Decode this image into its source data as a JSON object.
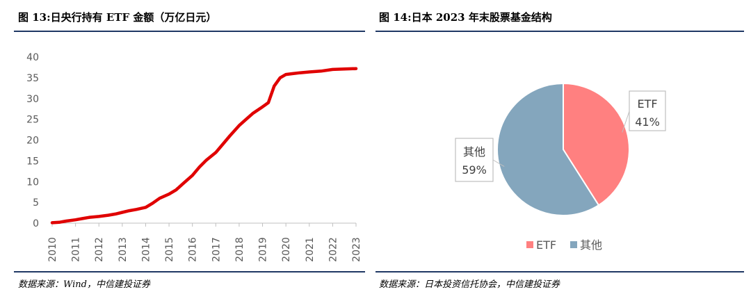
{
  "left_figure": {
    "title": "图 13:日央行持有 ETF 金额（万亿日元）",
    "source": "数据来源：Wind，中信建投证券"
  },
  "right_figure": {
    "title": "图 14:日本 2023 年末股票基金结构",
    "source": "数据来源：日本投资信托协会，中信建投证券"
  },
  "colors": {
    "line": "#e00000",
    "etf": "#ff8080",
    "other": "#84a6bd",
    "rule": "#1f3864"
  },
  "chart_data": [
    {
      "type": "line",
      "title": "日央行持有 ETF 金额（万亿日元）",
      "xlabel": "",
      "ylabel": "",
      "x_ticks": [
        "2010",
        "2011",
        "2012",
        "2013",
        "2014",
        "2015",
        "2016",
        "2017",
        "2018",
        "2019",
        "2020",
        "2021",
        "2022",
        "2023"
      ],
      "xlim": [
        2010,
        2023
      ],
      "ylim": [
        0,
        40
      ],
      "y_ticks": [
        0,
        5,
        10,
        15,
        20,
        25,
        30,
        35,
        40
      ],
      "grid": false,
      "series": [
        {
          "name": "日央行持有ETF金额",
          "x": [
            2010.0,
            2010.3,
            2010.6,
            2011.0,
            2011.3,
            2011.6,
            2012.0,
            2012.4,
            2012.7,
            2013.0,
            2013.3,
            2013.6,
            2014.0,
            2014.3,
            2014.6,
            2015.0,
            2015.3,
            2015.6,
            2016.0,
            2016.3,
            2016.6,
            2017.0,
            2017.3,
            2017.6,
            2018.0,
            2018.3,
            2018.6,
            2019.0,
            2019.25,
            2019.5,
            2019.75,
            2020.0,
            2020.3,
            2020.6,
            2021.0,
            2021.5,
            2022.0,
            2022.5,
            2023.0
          ],
          "y": [
            0.1,
            0.2,
            0.5,
            0.8,
            1.1,
            1.4,
            1.6,
            1.9,
            2.2,
            2.6,
            3.0,
            3.3,
            3.8,
            4.8,
            6.0,
            7.0,
            8.0,
            9.5,
            11.5,
            13.5,
            15.2,
            17.0,
            19.0,
            21.0,
            23.5,
            25.0,
            26.5,
            28.0,
            29.0,
            33.0,
            35.0,
            35.8,
            36.0,
            36.2,
            36.4,
            36.6,
            37.0,
            37.1,
            37.2
          ]
        }
      ]
    },
    {
      "type": "pie",
      "title": "日本 2023 年末股票基金结构",
      "legend_position": "bottom",
      "slices": [
        {
          "label": "ETF",
          "value": 41,
          "value_label": "41%"
        },
        {
          "label": "其他",
          "value": 59,
          "value_label": "59%"
        }
      ]
    }
  ]
}
